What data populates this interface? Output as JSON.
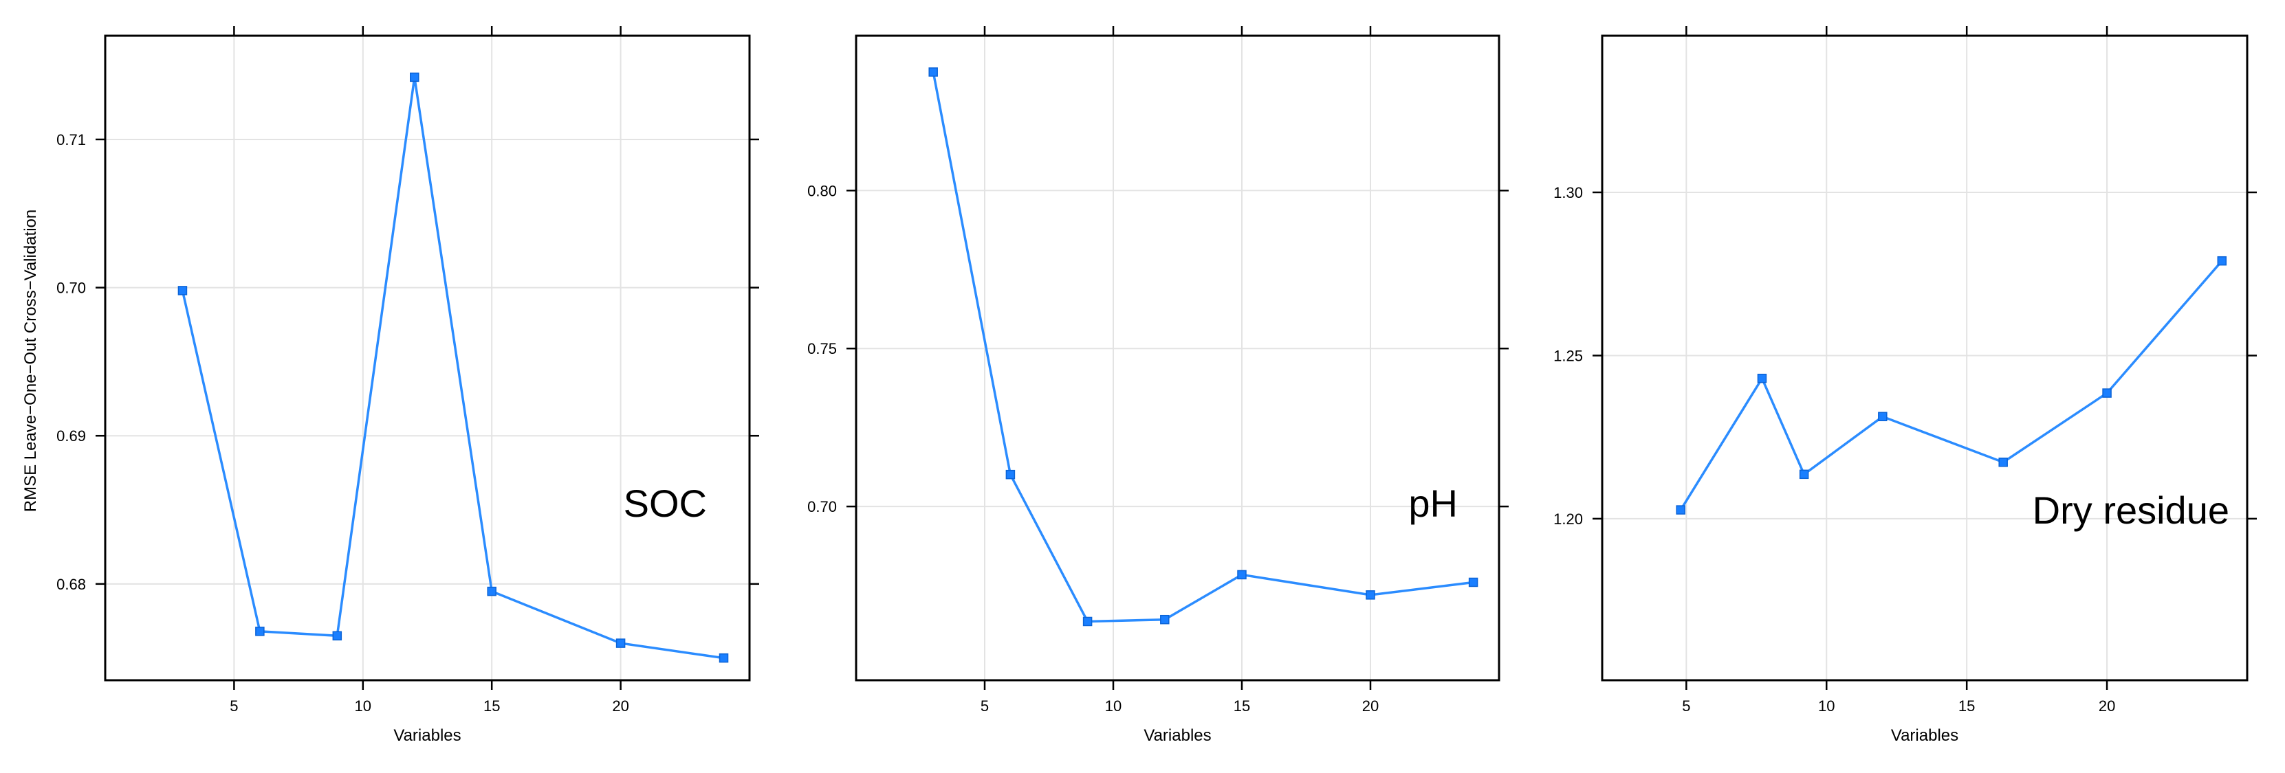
{
  "figure": {
    "ylabel": "RMSE Leave−One−Out Cross−Validation",
    "xlabel": "Variables"
  },
  "chart_data": [
    {
      "type": "line",
      "panel_label": "SOC",
      "xlabel": "Variables",
      "ylabel": "RMSE Leave−One−Out Cross−Validation",
      "x_ticks": [
        5,
        10,
        15,
        20
      ],
      "y_ticks": [
        0.68,
        0.69,
        0.7,
        0.71
      ],
      "y_tick_labels": [
        "0.68",
        "0.69",
        "0.70",
        "0.71"
      ],
      "xlim": [
        0,
        25
      ],
      "ylim": [
        0.6735,
        0.717
      ],
      "grid": true,
      "series": [
        {
          "color": "#2b8cff",
          "x": [
            3,
            6,
            9,
            12,
            15,
            20,
            24
          ],
          "y": [
            0.6998,
            0.6768,
            0.6765,
            0.7142,
            0.6795,
            0.676,
            0.675
          ]
        }
      ]
    },
    {
      "type": "line",
      "panel_label": "pH",
      "xlabel": "Variables",
      "ylabel": "",
      "x_ticks": [
        5,
        10,
        15,
        20
      ],
      "y_ticks": [
        0.7,
        0.75,
        0.8
      ],
      "y_tick_labels": [
        "0.70",
        "0.75",
        "0.80"
      ],
      "xlim": [
        0,
        25
      ],
      "ylim": [
        0.645,
        0.849
      ],
      "grid": true,
      "series": [
        {
          "color": "#2b8cff",
          "x": [
            3,
            6,
            9,
            12,
            15,
            20,
            24
          ],
          "y": [
            0.8375,
            0.7101,
            0.6636,
            0.6642,
            0.6784,
            0.672,
            0.676
          ]
        }
      ]
    },
    {
      "type": "line",
      "panel_label": "Dry residue",
      "xlabel": "Variables",
      "ylabel": "",
      "x_ticks": [
        5,
        10,
        15,
        20
      ],
      "y_ticks": [
        1.2,
        1.25,
        1.3
      ],
      "y_tick_labels": [
        "1.20",
        "1.25",
        "1.30"
      ],
      "xlim": [
        2,
        25
      ],
      "ylim": [
        1.1505,
        1.348
      ],
      "grid": true,
      "series": [
        {
          "color": "#2b8cff",
          "x": [
            4.8,
            7.7,
            9.2,
            12.0,
            16.3,
            20.0,
            24.1
          ],
          "y": [
            1.2027,
            1.243,
            1.2136,
            1.2313,
            1.2173,
            1.2385,
            1.279
          ]
        }
      ]
    }
  ]
}
